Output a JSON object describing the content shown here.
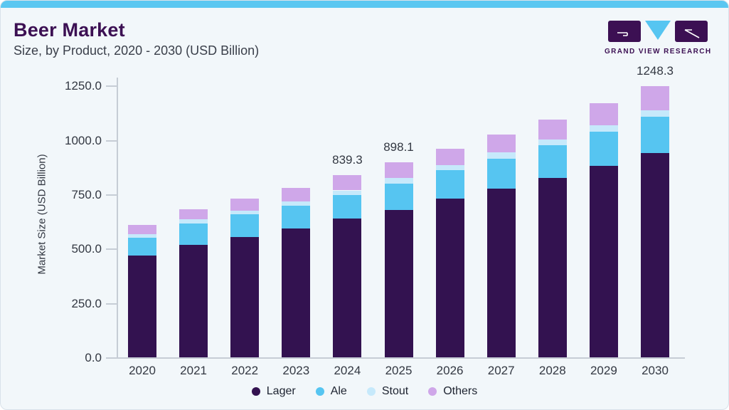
{
  "header": {
    "title": "Beer Market",
    "subtitle": "Size, by Product, 2020 - 2030 (USD Billion)",
    "logo_wordmark": "GRAND VIEW RESEARCH"
  },
  "colors": {
    "accent_strip": "#5BC7F1",
    "card_background": "#F2F7FA",
    "title_purple": "#3C1053",
    "axis_line": "#C6CDD5",
    "axis_text": "#333842",
    "lager": "#331250",
    "ale": "#56C5F1",
    "stout": "#C6E9FB",
    "others": "#CFA7E9"
  },
  "chart_data": {
    "type": "bar",
    "stacked": true,
    "title": "Beer Market Size, by Product, 2020 - 2030 (USD Billion)",
    "xlabel": "",
    "ylabel": "Market Size (USD Billion)",
    "ylim": [
      0,
      1250
    ],
    "yticks": [
      0,
      250,
      500,
      750,
      1000,
      1250
    ],
    "ytick_labels": [
      "0.0",
      "250.0",
      "500.0",
      "750.0",
      "1000.0",
      "1250.0"
    ],
    "grid": false,
    "legend_position": "bottom",
    "categories": [
      "2020",
      "2021",
      "2022",
      "2023",
      "2024",
      "2025",
      "2026",
      "2027",
      "2028",
      "2029",
      "2030"
    ],
    "series": [
      {
        "name": "Lager",
        "color": "#331250",
        "values": [
          467.0,
          517.3,
          553.6,
          594.6,
          637.4,
          679.8,
          731.8,
          775.6,
          826.7,
          882.2,
          941.5
        ]
      },
      {
        "name": "Ale",
        "color": "#56C5F1",
        "values": [
          83.3,
          99.6,
          104.5,
          103.9,
          110.8,
          121.2,
          128.8,
          139.3,
          148.5,
          156.0,
          166.9
        ]
      },
      {
        "name": "Stout",
        "color": "#C6E9FB",
        "values": [
          16.2,
          17.1,
          18.4,
          19.8,
          20.1,
          24.3,
          23.9,
          27.5,
          28.0,
          28.8,
          29.6
        ]
      },
      {
        "name": "Others",
        "color": "#CFA7E9",
        "values": [
          44.3,
          47.0,
          55.3,
          62.5,
          71.0,
          72.8,
          74.2,
          83.7,
          91.7,
          102.0,
          110.3
        ]
      }
    ],
    "totals": [
      610.8,
      681.0,
      731.8,
      780.8,
      839.3,
      898.1,
      958.7,
      1026.1,
      1094.9,
      1169.0,
      1248.3
    ],
    "total_labels": [
      {
        "category": "2024",
        "text": "839.3"
      },
      {
        "category": "2025",
        "text": "898.1"
      },
      {
        "category": "2030",
        "text": "1248.3"
      }
    ],
    "legend": [
      "Lager",
      "Ale",
      "Stout",
      "Others"
    ]
  }
}
